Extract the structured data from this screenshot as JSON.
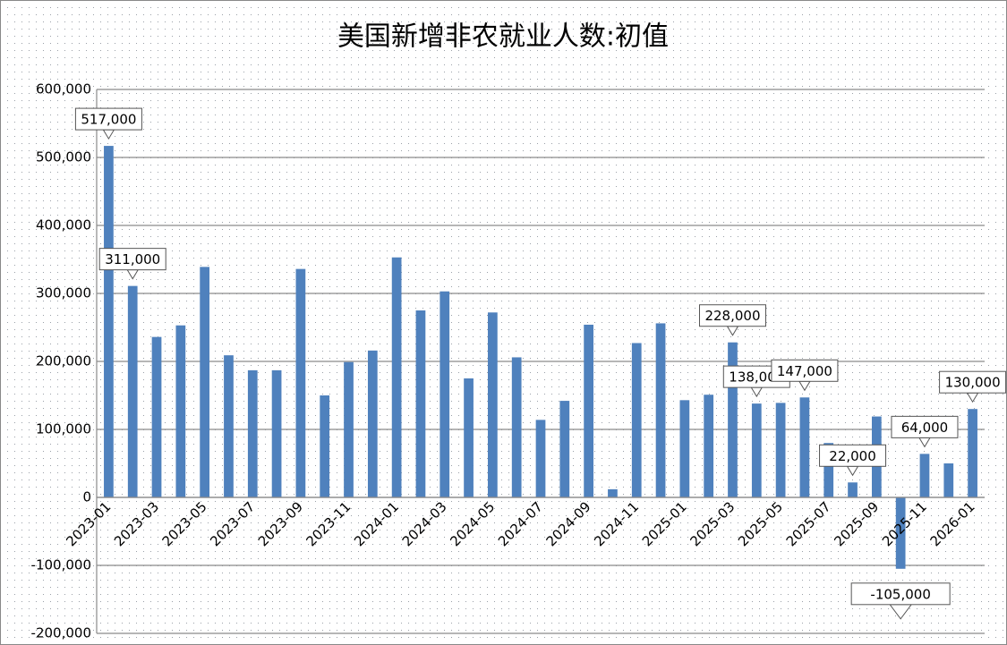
{
  "chart_data": {
    "type": "bar",
    "title": "美国新增非农就业人数:初值",
    "categories": [
      "2023-01",
      null,
      "2023-03",
      null,
      "2023-05",
      null,
      "2023-07",
      null,
      "2023-09",
      null,
      "2023-11",
      null,
      "2024-01",
      null,
      "2024-03",
      null,
      "2024-05",
      null,
      "2024-07",
      null,
      "2024-09",
      null,
      "2024-11",
      null,
      "2025-01",
      null,
      "2025-03",
      null,
      "2025-05",
      null,
      "2025-07",
      null,
      "2025-09",
      null,
      "2025-11",
      null,
      "2026-01"
    ],
    "values": [
      517000,
      311000,
      236000,
      253000,
      339000,
      209000,
      187000,
      187000,
      336000,
      150000,
      199000,
      216000,
      353000,
      275000,
      303000,
      175000,
      272000,
      206000,
      114000,
      142000,
      254000,
      12000,
      227000,
      256000,
      143000,
      151000,
      228000,
      138000,
      139000,
      147000,
      80000,
      22000,
      119000,
      -105000,
      64000,
      50000,
      130000
    ],
    "value_labels": [
      "517,000",
      "311,000",
      null,
      null,
      null,
      null,
      null,
      null,
      null,
      null,
      null,
      null,
      null,
      null,
      null,
      null,
      null,
      null,
      null,
      null,
      null,
      null,
      null,
      null,
      null,
      null,
      "228,000",
      "138,000",
      null,
      "147,000",
      null,
      "22,000",
      null,
      "-105,000",
      "64,000",
      null,
      "130,000"
    ],
    "color": "#4f81bd",
    "ylim": [
      -200000,
      600000
    ],
    "yticks": [
      {
        "value": -200000,
        "label": "-200,000"
      },
      {
        "value": -100000,
        "label": "-100,000"
      },
      0,
      {
        "value": 100000,
        "label": "100,000"
      },
      {
        "value": 200000,
        "label": "200,000"
      },
      {
        "value": 300000,
        "label": "300,000"
      },
      {
        "value": 400000,
        "label": "400,000"
      },
      {
        "value": 500000,
        "label": "500,000"
      },
      {
        "value": 600000,
        "label": "600,000"
      }
    ],
    "grid": true
  }
}
